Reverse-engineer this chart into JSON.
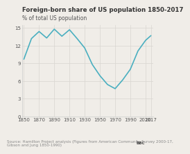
{
  "title": "Foreign-born share of US population 1850-2017",
  "ylabel": "% of total US population",
  "source": "Source: Hamilton Project analysis (Figures from American Community Survey 2000-17,\nGibson and Jung 1850-1990)",
  "line_color": "#4aafc0",
  "background_color": "#f0ede8",
  "plot_bg_color": "#f0ede8",
  "x": [
    1850,
    1860,
    1870,
    1880,
    1890,
    1900,
    1910,
    1920,
    1930,
    1940,
    1950,
    1960,
    1970,
    1980,
    1990,
    2000,
    2010,
    2017
  ],
  "y": [
    9.7,
    13.2,
    14.4,
    13.3,
    14.8,
    13.6,
    14.7,
    13.2,
    11.6,
    8.8,
    6.9,
    5.4,
    4.7,
    6.2,
    8.0,
    11.1,
    12.9,
    13.7
  ],
  "xlim": [
    1848,
    2020
  ],
  "ylim": [
    0,
    15.5
  ],
  "yticks": [
    0,
    3,
    6,
    9,
    12,
    15
  ],
  "xticks": [
    1850,
    1870,
    1890,
    1910,
    1930,
    1950,
    1970,
    1990,
    2010,
    2017
  ],
  "title_fontsize": 6.2,
  "ylabel_fontsize": 5.5,
  "tick_fontsize": 5.0,
  "source_fontsize": 4.0,
  "linewidth": 1.2,
  "grid_color": "#d8d5d0",
  "spine_color": "#cccccc",
  "text_color": "#333333",
  "tick_color": "#555555"
}
